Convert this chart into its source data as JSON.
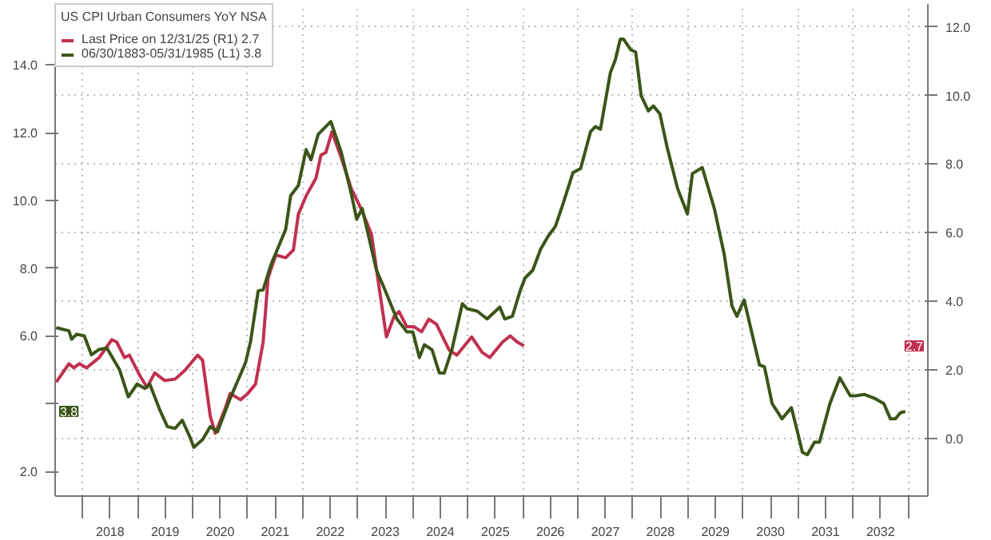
{
  "chart_data": {
    "type": "line",
    "legend_title": "US CPI Urban Consumers YoY NSA",
    "legend": "top left",
    "grid": true,
    "xlim": [
      2017.5,
      2033.36
    ],
    "annotations": [
      "2.7",
      "3.8"
    ],
    "xticks": [
      {
        "value": 2018,
        "label": null
      },
      {
        "value": 2018.5,
        "label": "2018"
      },
      {
        "value": 2019,
        "label": null
      },
      {
        "value": 2019.5,
        "label": "2019"
      },
      {
        "value": 2020,
        "label": null
      },
      {
        "value": 2020.5,
        "label": "2020"
      },
      {
        "value": 2021,
        "label": null
      },
      {
        "value": 2021.5,
        "label": "2021"
      },
      {
        "value": 2022,
        "label": null
      },
      {
        "value": 2022.5,
        "label": "2022"
      },
      {
        "value": 2023,
        "label": null
      },
      {
        "value": 2023.5,
        "label": "2023"
      },
      {
        "value": 2024,
        "label": null
      },
      {
        "value": 2024.5,
        "label": "2024"
      },
      {
        "value": 2025,
        "label": null
      },
      {
        "value": 2025.5,
        "label": "2025"
      },
      {
        "value": 2026,
        "label": null
      },
      {
        "value": 2026.5,
        "label": "2026"
      },
      {
        "value": 2027,
        "label": null
      },
      {
        "value": 2027.5,
        "label": "2027"
      },
      {
        "value": 2028,
        "label": null
      },
      {
        "value": 2028.5,
        "label": "2028"
      },
      {
        "value": 2029,
        "label": null
      },
      {
        "value": 2029.5,
        "label": "2029"
      },
      {
        "value": 2030,
        "label": null
      },
      {
        "value": 2030.5,
        "label": "2030"
      },
      {
        "value": 2031,
        "label": null
      },
      {
        "value": 2031.5,
        "label": "2031"
      },
      {
        "value": 2032,
        "label": null
      },
      {
        "value": 2032.5,
        "label": "2032"
      },
      {
        "value": 2033,
        "label": null
      }
    ],
    "ylim": [
      1.27,
      15.8
    ],
    "yticks": [
      {
        "value": 2,
        "label": "2.0"
      },
      {
        "value": 4,
        "label": null
      },
      {
        "value": 6,
        "label": "6.0"
      },
      {
        "value": 8,
        "label": "8.0"
      },
      {
        "value": 10,
        "label": "10.0"
      },
      {
        "value": 12,
        "label": "12.0"
      },
      {
        "value": 14,
        "label": "14.0"
      }
    ],
    "y2lim": [
      -1.68,
      12.67
    ],
    "y2ticks": [
      {
        "value": 0,
        "label": "0.0"
      },
      {
        "value": 2,
        "label": "2.0"
      },
      {
        "value": 4,
        "label": "4.0"
      },
      {
        "value": 6,
        "label": "6.0"
      },
      {
        "value": 8,
        "label": "8.0"
      },
      {
        "value": 10,
        "label": "10.0"
      },
      {
        "value": 12,
        "label": "12.0"
      }
    ],
    "series": [
      {
        "name": "Last Price on 12/31/25 (R1) 2.7",
        "color": "#c0304f",
        "axis": "y2",
        "x": [
          2017.52,
          2017.75,
          2017.84,
          2017.94,
          2018.07,
          2018.3,
          2018.53,
          2018.62,
          2018.76,
          2018.85,
          2019.04,
          2019.17,
          2019.31,
          2019.49,
          2019.68,
          2019.86,
          2020.09,
          2020.18,
          2020.32,
          2020.41,
          2020.59,
          2020.68,
          2020.87,
          2021.0,
          2021.14,
          2021.28,
          2021.37,
          2021.51,
          2021.69,
          2021.83,
          2021.92,
          2022.06,
          2022.24,
          2022.33,
          2022.42,
          2022.53,
          2022.7,
          2022.88,
          2023.06,
          2023.25,
          2023.37,
          2023.52,
          2023.66,
          2023.75,
          2023.89,
          2024.02,
          2024.16,
          2024.29,
          2024.43,
          2024.66,
          2024.8,
          2025.07,
          2025.26,
          2025.4,
          2025.63,
          2025.77,
          2025.9,
          2026.02
        ],
        "values": [
          1.64,
          2.18,
          2.06,
          2.18,
          2.06,
          2.36,
          2.88,
          2.81,
          2.36,
          2.43,
          1.83,
          1.49,
          1.91,
          1.69,
          1.73,
          1.99,
          2.43,
          2.28,
          0.64,
          0.15,
          0.87,
          1.31,
          1.13,
          1.31,
          1.58,
          2.81,
          4.68,
          5.35,
          5.27,
          5.5,
          6.54,
          7.07,
          7.59,
          8.26,
          8.34,
          8.94,
          8.19,
          7.29,
          6.7,
          5.95,
          4.6,
          2.96,
          3.56,
          3.7,
          3.26,
          3.26,
          3.11,
          3.48,
          3.33,
          2.58,
          2.43,
          2.96,
          2.51,
          2.36,
          2.81,
          2.99,
          2.81,
          2.7
        ]
      },
      {
        "name": "06/30/1883-05/31/1985 (L1) 3.8",
        "color": "#3b5518",
        "x": [
          2017.52,
          2017.75,
          2017.8,
          2017.89,
          2018.03,
          2018.16,
          2018.3,
          2018.44,
          2018.67,
          2018.83,
          2018.99,
          2019.13,
          2019.22,
          2019.4,
          2019.54,
          2019.68,
          2019.81,
          2019.95,
          2020.02,
          2020.18,
          2020.32,
          2020.45,
          2020.68,
          2020.96,
          2021.05,
          2021.19,
          2021.28,
          2021.42,
          2021.69,
          2021.78,
          2021.92,
          2022.06,
          2022.15,
          2022.28,
          2022.51,
          2022.7,
          2022.88,
          2022.98,
          2023.08,
          2023.34,
          2023.48,
          2023.71,
          2023.89,
          2024.0,
          2024.12,
          2024.21,
          2024.35,
          2024.48,
          2024.57,
          2024.71,
          2024.9,
          2024.99,
          2025.17,
          2025.35,
          2025.58,
          2025.67,
          2025.81,
          2025.95,
          2026.04,
          2026.18,
          2026.32,
          2026.45,
          2026.59,
          2026.73,
          2026.91,
          2027.05,
          2027.23,
          2027.32,
          2027.41,
          2027.59,
          2027.68,
          2027.77,
          2027.83,
          2027.96,
          2028.05,
          2028.15,
          2028.28,
          2028.37,
          2028.49,
          2028.62,
          2028.81,
          2028.99,
          2029.08,
          2029.26,
          2029.48,
          2029.66,
          2029.8,
          2029.89,
          2030.02,
          2030.3,
          2030.39,
          2030.53,
          2030.71,
          2030.88,
          2030.99,
          2031.08,
          2031.17,
          2031.3,
          2031.39,
          2031.58,
          2031.76,
          2031.95,
          2032.04,
          2032.21,
          2032.4,
          2032.56,
          2032.68,
          2032.77,
          2032.86,
          2032.95
        ],
        "values": [
          6.24,
          6.15,
          5.9,
          6.05,
          6.0,
          5.44,
          5.6,
          5.64,
          5.0,
          4.2,
          4.58,
          4.45,
          4.58,
          3.82,
          3.32,
          3.27,
          3.51,
          3.01,
          2.71,
          2.94,
          3.32,
          3.17,
          4.15,
          5.21,
          5.82,
          7.33,
          7.36,
          8.09,
          9.15,
          10.14,
          10.44,
          11.5,
          11.2,
          11.95,
          12.33,
          11.42,
          10.21,
          9.45,
          9.76,
          7.94,
          7.41,
          6.5,
          6.12,
          6.12,
          5.36,
          5.74,
          5.59,
          4.91,
          4.9,
          5.59,
          6.95,
          6.8,
          6.73,
          6.5,
          6.85,
          6.5,
          6.58,
          7.33,
          7.71,
          7.94,
          8.55,
          8.92,
          9.23,
          9.9,
          10.82,
          10.94,
          12.03,
          12.18,
          12.1,
          13.77,
          14.15,
          14.76,
          14.76,
          14.45,
          14.38,
          13.09,
          12.64,
          12.79,
          12.56,
          11.58,
          10.36,
          9.6,
          10.79,
          10.97,
          9.76,
          8.4,
          6.88,
          6.58,
          7.06,
          5.14,
          5.09,
          4.0,
          3.55,
          3.88,
          3.17,
          2.56,
          2.49,
          2.86,
          2.86,
          4.0,
          4.76,
          4.23,
          4.23,
          4.27,
          4.15,
          4.0,
          3.55,
          3.55,
          3.73,
          3.77
        ]
      }
    ]
  }
}
